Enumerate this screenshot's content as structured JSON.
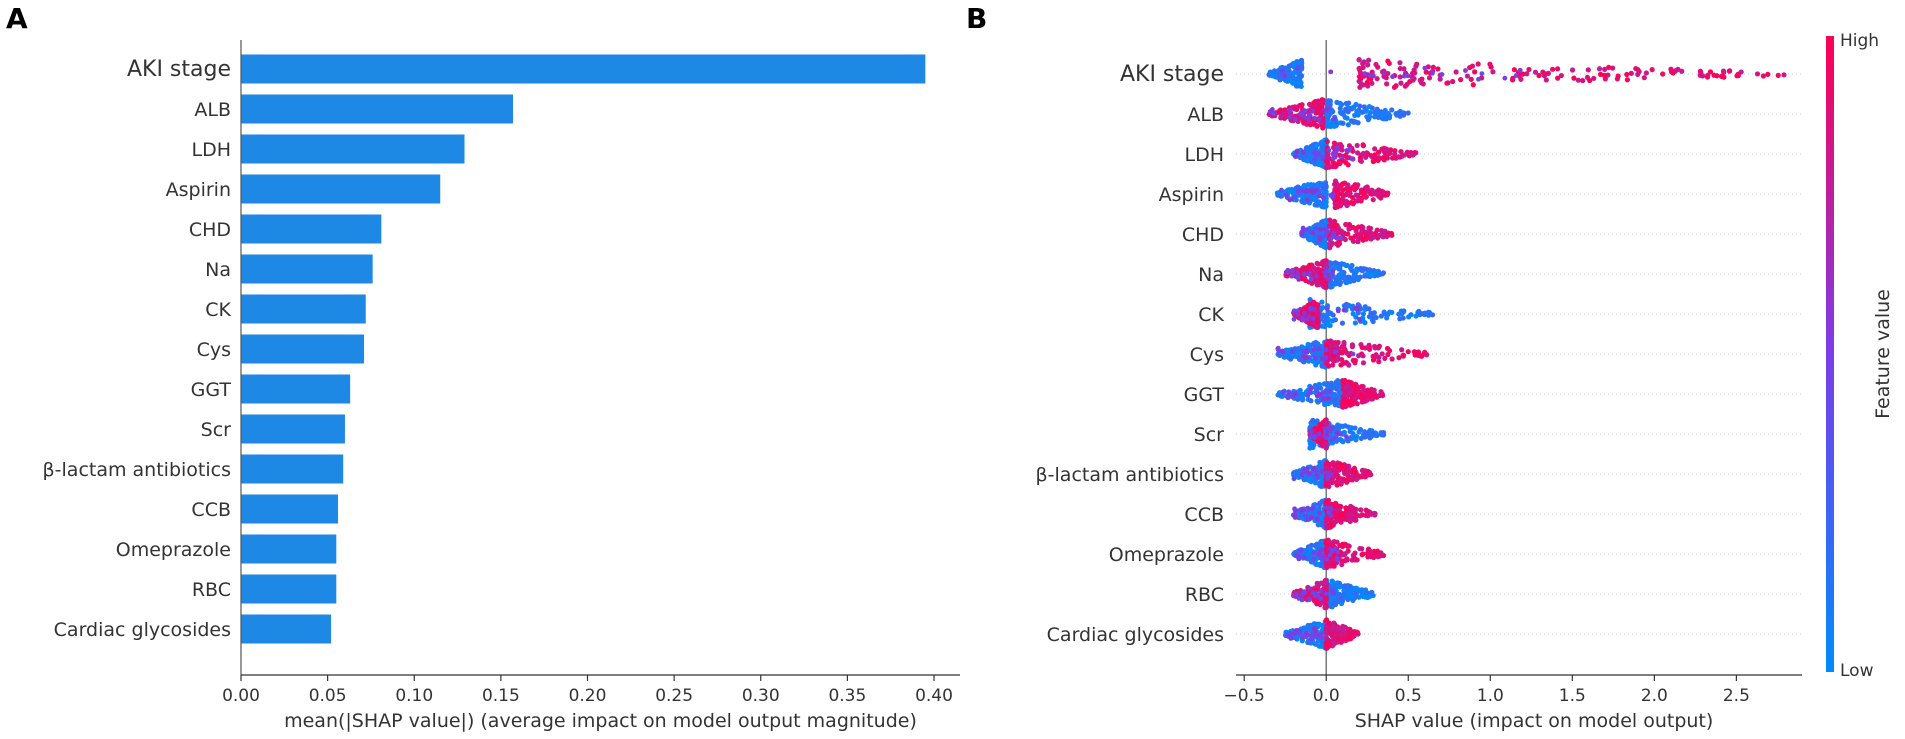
{
  "figure": {
    "panel_a_letter": "A",
    "panel_b_letter": "B"
  },
  "chart_data": [
    {
      "type": "bar",
      "orientation": "horizontal",
      "panel": "A",
      "title": "",
      "categories": [
        "AKI stage",
        "ALB",
        "LDH",
        "Aspirin",
        "CHD",
        "Na",
        "CK",
        "Cys",
        "GGT",
        "Scr",
        "β-lactam antibiotics",
        "CCB",
        "Omeprazole",
        "RBC",
        "Cardiac glycosides"
      ],
      "values": [
        0.395,
        0.157,
        0.129,
        0.115,
        0.081,
        0.076,
        0.072,
        0.071,
        0.063,
        0.06,
        0.059,
        0.056,
        0.055,
        0.055,
        0.052
      ],
      "xlabel": "mean(|SHAP value|) (average impact on model output magnitude)",
      "ylabel": "",
      "xlim": [
        0,
        0.415
      ],
      "xticks": [
        "0.00",
        "0.05",
        "0.10",
        "0.15",
        "0.20",
        "0.25",
        "0.30",
        "0.35",
        "0.40"
      ],
      "bar_color": "#1e88e5"
    },
    {
      "type": "scatter",
      "subtype": "beeswarm",
      "panel": "B",
      "title": "",
      "categories": [
        "AKI stage",
        "ALB",
        "LDH",
        "Aspirin",
        "CHD",
        "Na",
        "CK",
        "Cys",
        "GGT",
        "Scr",
        "β-lactam antibiotics",
        "CCB",
        "Omeprazole",
        "RBC",
        "Cardiac glycosides"
      ],
      "series": [
        {
          "name": "AKI stage",
          "low_range": [
            -0.35,
            -0.15
          ],
          "high_range": [
            0.2,
            2.8
          ]
        },
        {
          "name": "ALB",
          "low_range": [
            0.0,
            0.5
          ],
          "high_range": [
            -0.35,
            -0.02
          ]
        },
        {
          "name": "LDH",
          "low_range": [
            -0.2,
            0.0
          ],
          "high_range": [
            0.0,
            0.55
          ]
        },
        {
          "name": "Aspirin",
          "low_range": [
            -0.3,
            0.0
          ],
          "high_range": [
            0.05,
            0.4
          ]
        },
        {
          "name": "CHD",
          "low_range": [
            -0.15,
            0.0
          ],
          "high_range": [
            0.02,
            0.4
          ]
        },
        {
          "name": "Na",
          "low_range": [
            0.0,
            0.35
          ],
          "high_range": [
            -0.25,
            0.0
          ]
        },
        {
          "name": "CK",
          "low_range": [
            -0.1,
            0.65
          ],
          "high_range": [
            -0.2,
            -0.05
          ]
        },
        {
          "name": "Cys",
          "low_range": [
            -0.3,
            0.0
          ],
          "high_range": [
            0.0,
            0.63
          ]
        },
        {
          "name": "GGT",
          "low_range": [
            -0.3,
            0.1
          ],
          "high_range": [
            0.1,
            0.35
          ]
        },
        {
          "name": "Scr",
          "low_range": [
            -0.1,
            0.35
          ],
          "high_range": [
            -0.1,
            0.0
          ]
        },
        {
          "name": "β-lactam antibiotics",
          "low_range": [
            -0.2,
            0.0
          ],
          "high_range": [
            0.0,
            0.28
          ]
        },
        {
          "name": "CCB",
          "low_range": [
            -0.2,
            0.0
          ],
          "high_range": [
            0.0,
            0.3
          ]
        },
        {
          "name": "Omeprazole",
          "low_range": [
            -0.2,
            0.0
          ],
          "high_range": [
            0.0,
            0.35
          ]
        },
        {
          "name": "RBC",
          "low_range": [
            0.0,
            0.3
          ],
          "high_range": [
            -0.2,
            0.0
          ]
        },
        {
          "name": "Cardiac glycosides",
          "low_range": [
            -0.25,
            0.0
          ],
          "high_range": [
            0.0,
            0.2
          ]
        }
      ],
      "xlabel": "SHAP value (impact on model output)",
      "ylabel": "",
      "xlim": [
        -0.55,
        2.9
      ],
      "xticks": [
        "−0.5",
        "0.0",
        "0.5",
        "1.0",
        "1.5",
        "2.0",
        "2.5"
      ],
      "colorbar": {
        "label": "Feature value",
        "high_label": "High",
        "low_label": "Low",
        "high_color": "#ff0052",
        "low_color": "#008bfb"
      }
    }
  ]
}
